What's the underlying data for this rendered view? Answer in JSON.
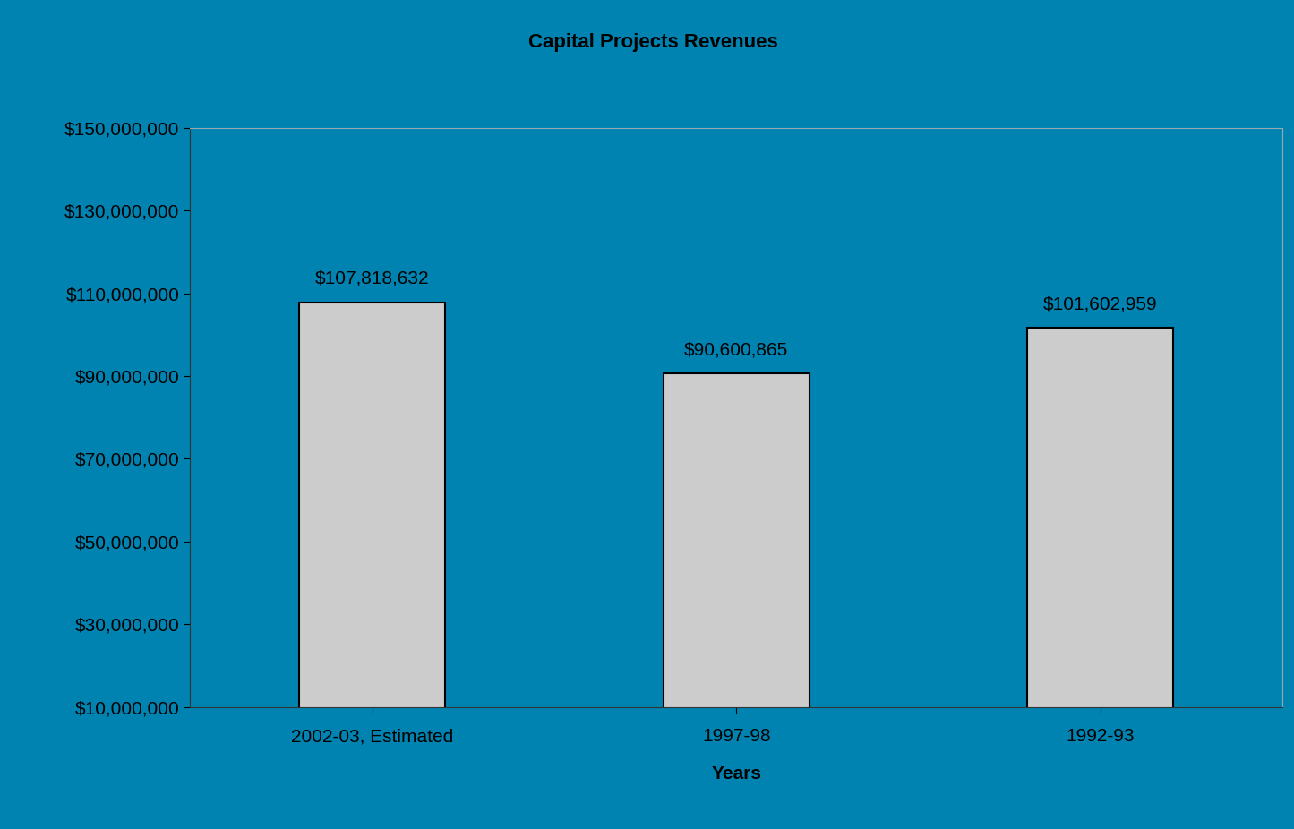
{
  "chart_data": {
    "type": "bar",
    "title": "Capital Projects Revenues",
    "x_label": "Years",
    "categories": [
      "2002-03, Estimated",
      "1997-98",
      "1992-93"
    ],
    "values": [
      107818632,
      90600865,
      101602959
    ],
    "value_labels": [
      "$107,818,632",
      "$90,600,865",
      "$101,602,959"
    ],
    "data_labels": true,
    "color": "#cccccc",
    "ylim": [
      10000000,
      150000000
    ],
    "yticks": [
      {
        "value": 10000000,
        "label": "$10,000,000"
      },
      {
        "value": 30000000,
        "label": "$30,000,000"
      },
      {
        "value": 50000000,
        "label": "$50,000,000"
      },
      {
        "value": 70000000,
        "label": "$70,000,000"
      },
      {
        "value": 90000000,
        "label": "$90,000,000"
      },
      {
        "value": 110000000,
        "label": "$110,000,000"
      },
      {
        "value": 130000000,
        "label": "$130,000,000"
      },
      {
        "value": 150000000,
        "label": "$150,000,000"
      }
    ],
    "grid": false
  }
}
